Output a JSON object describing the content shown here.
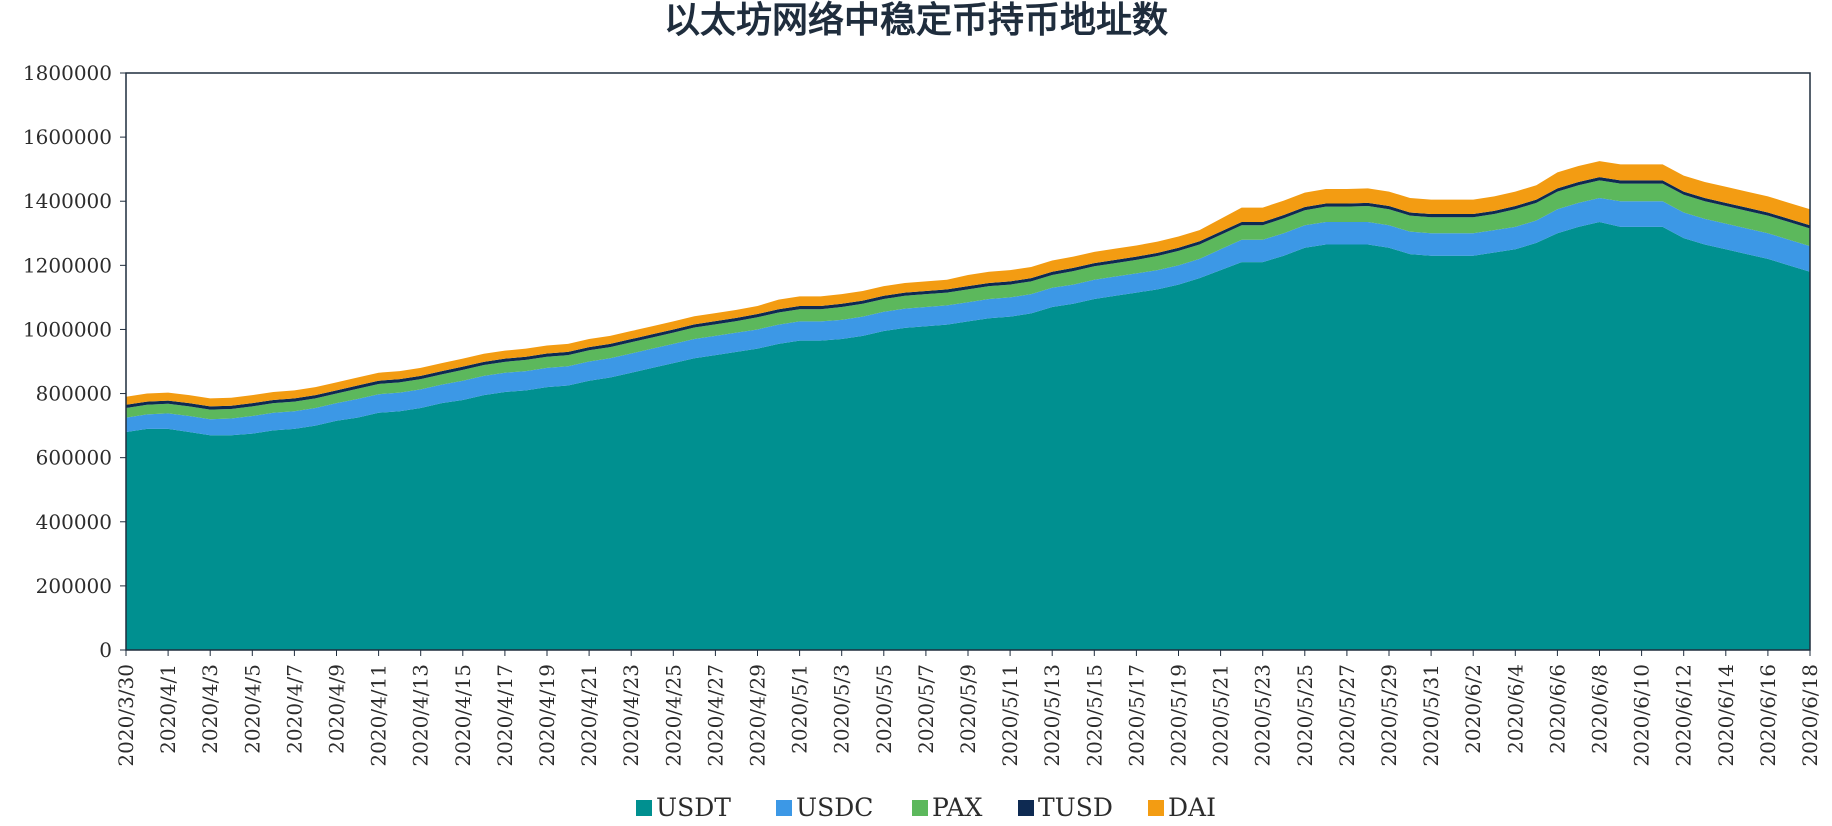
{
  "chart_data": {
    "type": "area",
    "stacked": true,
    "title": "以太坊网络中稳定币持币地址数",
    "xlabel": "",
    "ylabel": "",
    "ylim": [
      0,
      1800000
    ],
    "yticks": [
      0,
      200000,
      400000,
      600000,
      800000,
      1000000,
      1200000,
      1400000,
      1600000,
      1800000
    ],
    "grid": false,
    "legend_position": "bottom",
    "x": [
      "2020/3/30",
      "2020/3/31",
      "2020/4/1",
      "2020/4/2",
      "2020/4/3",
      "2020/4/4",
      "2020/4/5",
      "2020/4/6",
      "2020/4/7",
      "2020/4/8",
      "2020/4/9",
      "2020/4/10",
      "2020/4/11",
      "2020/4/12",
      "2020/4/13",
      "2020/4/14",
      "2020/4/15",
      "2020/4/16",
      "2020/4/17",
      "2020/4/18",
      "2020/4/19",
      "2020/4/20",
      "2020/4/21",
      "2020/4/22",
      "2020/4/23",
      "2020/4/24",
      "2020/4/25",
      "2020/4/26",
      "2020/4/27",
      "2020/4/28",
      "2020/4/29",
      "2020/4/30",
      "2020/5/1",
      "2020/5/2",
      "2020/5/3",
      "2020/5/4",
      "2020/5/5",
      "2020/5/6",
      "2020/5/7",
      "2020/5/8",
      "2020/5/9",
      "2020/5/10",
      "2020/5/11",
      "2020/5/12",
      "2020/5/13",
      "2020/5/14",
      "2020/5/15",
      "2020/5/16",
      "2020/5/17",
      "2020/5/18",
      "2020/5/19",
      "2020/5/20",
      "2020/5/21",
      "2020/5/22",
      "2020/5/23",
      "2020/5/24",
      "2020/5/25",
      "2020/5/26",
      "2020/5/27",
      "2020/5/28",
      "2020/5/29",
      "2020/5/30",
      "2020/5/31",
      "2020/6/1",
      "2020/6/2",
      "2020/6/3",
      "2020/6/4",
      "2020/6/5",
      "2020/6/6",
      "2020/6/7",
      "2020/6/8",
      "2020/6/9",
      "2020/6/10",
      "2020/6/11",
      "2020/6/12",
      "2020/6/13",
      "2020/6/14",
      "2020/6/15",
      "2020/6/16",
      "2020/6/17",
      "2020/6/18"
    ],
    "xtick_labels": [
      "2020/3/30",
      "2020/4/1",
      "2020/4/3",
      "2020/4/5",
      "2020/4/7",
      "2020/4/9",
      "2020/4/11",
      "2020/4/13",
      "2020/4/15",
      "2020/4/17",
      "2020/4/19",
      "2020/4/21",
      "2020/4/23",
      "2020/4/25",
      "2020/4/27",
      "2020/4/29",
      "2020/5/1",
      "2020/5/3",
      "2020/5/5",
      "2020/5/7",
      "2020/5/9",
      "2020/5/11",
      "2020/5/13",
      "2020/5/15",
      "2020/5/17",
      "2020/5/19",
      "2020/5/21",
      "2020/5/23",
      "2020/5/25",
      "2020/5/27",
      "2020/5/29",
      "2020/5/31",
      "2020/6/2",
      "2020/6/4",
      "2020/6/6",
      "2020/6/8",
      "2020/6/10",
      "2020/6/12",
      "2020/6/14",
      "2020/6/16",
      "2020/6/18"
    ],
    "series": [
      {
        "name": "USDT",
        "color": "#009090",
        "values": [
          680000,
          690000,
          690000,
          680000,
          670000,
          670000,
          675000,
          685000,
          690000,
          700000,
          715000,
          725000,
          740000,
          745000,
          755000,
          770000,
          780000,
          795000,
          805000,
          810000,
          820000,
          825000,
          840000,
          850000,
          865000,
          880000,
          895000,
          910000,
          920000,
          930000,
          940000,
          955000,
          965000,
          965000,
          970000,
          980000,
          995000,
          1005000,
          1010000,
          1015000,
          1025000,
          1035000,
          1040000,
          1050000,
          1070000,
          1080000,
          1095000,
          1105000,
          1115000,
          1125000,
          1140000,
          1160000,
          1185000,
          1210000,
          1210000,
          1230000,
          1255000,
          1265000,
          1265000,
          1265000,
          1255000,
          1235000,
          1230000,
          1230000,
          1230000,
          1240000,
          1250000,
          1270000,
          1300000,
          1320000,
          1335000,
          1320000,
          1320000,
          1320000,
          1285000,
          1265000,
          1250000,
          1235000,
          1220000,
          1200000,
          1180000
        ]
      },
      {
        "name": "USDC",
        "color": "#3c98e6",
        "values": [
          45000,
          45000,
          48000,
          50000,
          50000,
          52000,
          55000,
          55000,
          55000,
          55000,
          55000,
          58000,
          58000,
          58000,
          58000,
          58000,
          60000,
          60000,
          60000,
          60000,
          60000,
          60000,
          60000,
          60000,
          60000,
          60000,
          60000,
          60000,
          60000,
          60000,
          60000,
          60000,
          60000,
          60000,
          60000,
          60000,
          60000,
          60000,
          60000,
          60000,
          60000,
          60000,
          60000,
          60000,
          60000,
          60000,
          60000,
          60000,
          60000,
          60000,
          60000,
          60000,
          65000,
          70000,
          70000,
          70000,
          70000,
          70000,
          70000,
          70000,
          70000,
          70000,
          70000,
          70000,
          70000,
          70000,
          70000,
          70000,
          75000,
          75000,
          75000,
          80000,
          80000,
          80000,
          80000,
          80000,
          80000,
          80000,
          80000,
          80000,
          80000
        ]
      },
      {
        "name": "PAX",
        "color": "#5cb85c",
        "values": [
          30000,
          30000,
          30000,
          30000,
          30000,
          30000,
          30000,
          30000,
          30000,
          30000,
          30000,
          32000,
          32000,
          32000,
          32000,
          32000,
          34000,
          34000,
          34000,
          35000,
          35000,
          35000,
          35000,
          35000,
          35000,
          35000,
          35000,
          36000,
          36000,
          36000,
          38000,
          38000,
          38000,
          38000,
          40000,
          40000,
          40000,
          40000,
          40000,
          40000,
          40000,
          40000,
          40000,
          40000,
          40000,
          42000,
          42000,
          42000,
          42000,
          44000,
          45000,
          45000,
          45000,
          45000,
          45000,
          47000,
          47000,
          48000,
          48000,
          50000,
          50000,
          50000,
          50000,
          50000,
          50000,
          50000,
          55000,
          55000,
          55000,
          55000,
          55000,
          55000,
          55000,
          55000,
          55000,
          55000,
          55000,
          55000,
          55000,
          55000,
          55000
        ]
      },
      {
        "name": "TUSD",
        "color": "#0e2a52",
        "values": [
          10000,
          10000,
          10000,
          10000,
          10000,
          10000,
          10000,
          10000,
          10000,
          10000,
          10000,
          10000,
          10000,
          10000,
          10000,
          10000,
          10000,
          10000,
          10000,
          10000,
          10000,
          10000,
          10000,
          10000,
          10000,
          10000,
          10000,
          10000,
          10000,
          10000,
          10000,
          10000,
          10000,
          10000,
          10000,
          10000,
          10000,
          10000,
          10000,
          10000,
          10000,
          10000,
          10000,
          10000,
          10000,
          10000,
          10000,
          10000,
          10000,
          10000,
          10000,
          10000,
          10000,
          10000,
          10000,
          10000,
          10000,
          10000,
          10000,
          10000,
          10000,
          10000,
          10000,
          10000,
          10000,
          10000,
          10000,
          10000,
          10000,
          10000,
          10000,
          10000,
          10000,
          10000,
          10000,
          10000,
          10000,
          10000,
          10000,
          10000,
          10000
        ]
      },
      {
        "name": "DAI",
        "color": "#f39c12",
        "values": [
          25000,
          25000,
          25000,
          25000,
          25000,
          25000,
          25000,
          25000,
          25000,
          25000,
          25000,
          25000,
          25000,
          25000,
          25000,
          25000,
          25000,
          25000,
          25000,
          25000,
          25000,
          25000,
          25000,
          25000,
          25000,
          25000,
          25000,
          25000,
          25000,
          25000,
          25000,
          30000,
          30000,
          30000,
          30000,
          30000,
          30000,
          30000,
          30000,
          30000,
          35000,
          35000,
          35000,
          35000,
          35000,
          35000,
          35000,
          35000,
          35000,
          35000,
          35000,
          35000,
          40000,
          45000,
          45000,
          45000,
          45000,
          45000,
          45000,
          45000,
          45000,
          45000,
          45000,
          45000,
          45000,
          45000,
          45000,
          45000,
          50000,
          50000,
          50000,
          50000,
          50000,
          50000,
          50000,
          50000,
          50000,
          50000,
          50000,
          50000,
          50000
        ]
      }
    ]
  }
}
